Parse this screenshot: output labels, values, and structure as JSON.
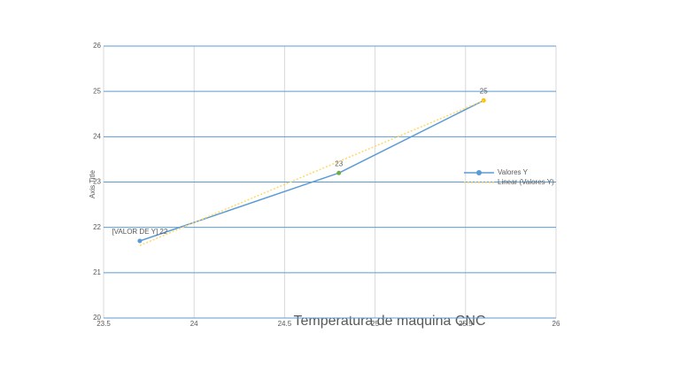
{
  "chart_data": {
    "type": "scatter",
    "title": "Temperatura de maquina CNC",
    "y_axis_title": "Axis Title",
    "xlim": [
      23.5,
      26
    ],
    "xticks": [
      23.5,
      24,
      24.5,
      25,
      25.5,
      26
    ],
    "ylim": [
      20,
      26
    ],
    "yticks": [
      20,
      21,
      22,
      23,
      24,
      25,
      26
    ],
    "grid": true,
    "series": [
      {
        "name": "Valores Y",
        "color": "#5b9bd5",
        "x": [
          23.7,
          24.8,
          25.6
        ],
        "values": [
          21.7,
          23.2,
          24.8
        ],
        "point_colors": [
          "#5b9bd5",
          "#70ad47",
          "#ffc000"
        ],
        "value_labels": [
          "[VALOR DE Y] 22",
          "23",
          "25"
        ]
      },
      {
        "name": "Linear (Valores Y)",
        "color": "#ffd966",
        "dashed": true,
        "x": [
          23.7,
          25.6
        ],
        "values": [
          21.6,
          24.8
        ]
      }
    ],
    "legend": "right"
  }
}
